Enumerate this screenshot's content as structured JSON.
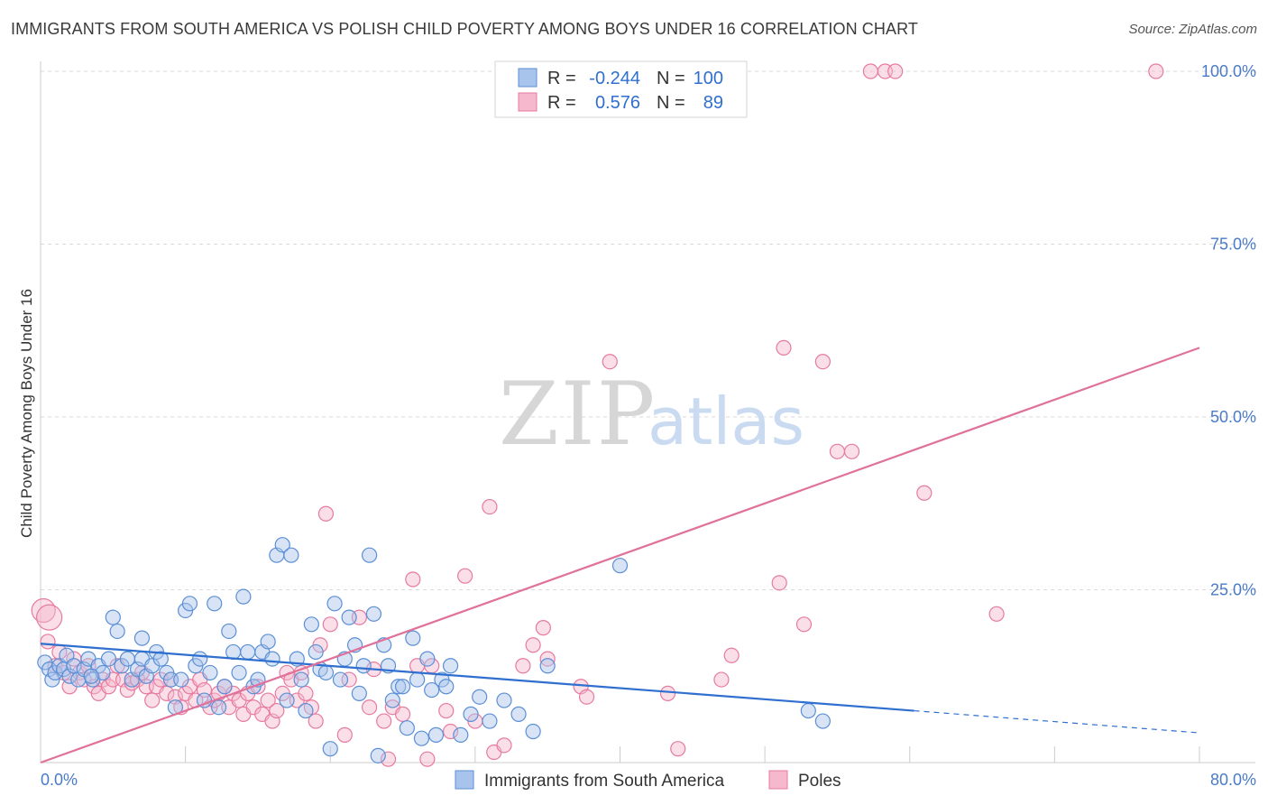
{
  "title": "IMMIGRANTS FROM SOUTH AMERICA VS POLISH CHILD POVERTY AMONG BOYS UNDER 16 CORRELATION CHART",
  "source": "Source: ZipAtlas.com",
  "watermark": {
    "zip": "ZIP",
    "atlas": "atlas"
  },
  "colors": {
    "blue": "#5b8fd6",
    "blue_fill": "#a9c4ec",
    "blue_line": "#2f6fcf",
    "pink": "#e77aa0",
    "pink_fill": "#f5b8cc",
    "pink_line": "#e0719a",
    "tick_text": "#4a7bc8",
    "grid": "#d9d9d9"
  },
  "stats_legend": [
    {
      "r_label": "R =",
      "r_value": "-0.244",
      "n_label": "N =",
      "n_value": "100"
    },
    {
      "r_label": "R =",
      "r_value": "0.576",
      "n_label": "N =",
      "n_value": "89"
    }
  ],
  "chart_data": {
    "type": "scatter",
    "xlabel": "",
    "ylabel": "Child Poverty Among Boys Under 16",
    "xlim": [
      0,
      80
    ],
    "ylim": [
      0,
      100
    ],
    "x_ticks": [
      {
        "value": 0,
        "label": "0.0%"
      },
      {
        "value": 80,
        "label": "80.0%"
      }
    ],
    "y_ticks": [
      {
        "value": 25,
        "label": "25.0%"
      },
      {
        "value": 50,
        "label": "50.0%"
      },
      {
        "value": 75,
        "label": "75.0%"
      },
      {
        "value": 100,
        "label": "100.0%"
      }
    ],
    "grid": true,
    "legend_position": "bottom-center",
    "series": [
      {
        "name": "Immigrants from South America",
        "color": "#5b8fd6",
        "trend": {
          "x0": 0,
          "y0": 17.2,
          "x1": 60.3,
          "y1": 7.5,
          "dash_to_x": 80,
          "dash_to_y": 4.3
        },
        "points": [
          [
            0.3,
            14.5
          ],
          [
            0.6,
            13.5
          ],
          [
            0.8,
            12
          ],
          [
            1.0,
            13
          ],
          [
            1.3,
            14
          ],
          [
            1.6,
            13.5
          ],
          [
            1.8,
            15.5
          ],
          [
            2.0,
            12.5
          ],
          [
            2.3,
            14
          ],
          [
            2.6,
            12
          ],
          [
            3.0,
            13.5
          ],
          [
            3.3,
            15
          ],
          [
            3.6,
            12
          ],
          [
            4.0,
            14
          ],
          [
            4.3,
            13
          ],
          [
            4.7,
            15
          ],
          [
            5.0,
            21
          ],
          [
            5.3,
            19
          ],
          [
            5.6,
            14
          ],
          [
            6.0,
            15
          ],
          [
            6.3,
            12
          ],
          [
            6.7,
            13.5
          ],
          [
            7.0,
            15
          ],
          [
            7.3,
            12.5
          ],
          [
            7.7,
            14
          ],
          [
            8.0,
            16
          ],
          [
            8.3,
            15
          ],
          [
            8.7,
            13
          ],
          [
            9.0,
            12
          ],
          [
            9.3,
            8
          ],
          [
            9.7,
            12
          ],
          [
            10.0,
            22
          ],
          [
            10.3,
            23
          ],
          [
            10.7,
            14
          ],
          [
            11.0,
            15
          ],
          [
            11.3,
            9
          ],
          [
            11.7,
            13
          ],
          [
            12.0,
            23
          ],
          [
            12.3,
            8
          ],
          [
            12.7,
            11
          ],
          [
            13.0,
            19
          ],
          [
            13.3,
            16
          ],
          [
            13.7,
            13
          ],
          [
            14.0,
            24
          ],
          [
            14.3,
            16
          ],
          [
            14.7,
            11
          ],
          [
            15.0,
            12
          ],
          [
            15.3,
            16
          ],
          [
            15.7,
            17.5
          ],
          [
            16.0,
            15
          ],
          [
            16.3,
            30
          ],
          [
            16.7,
            31.5
          ],
          [
            17.0,
            9
          ],
          [
            17.3,
            30
          ],
          [
            17.7,
            15
          ],
          [
            18.0,
            12
          ],
          [
            18.3,
            7.5
          ],
          [
            18.7,
            20
          ],
          [
            19.0,
            16
          ],
          [
            19.3,
            13.5
          ],
          [
            19.7,
            13
          ],
          [
            20.0,
            2
          ],
          [
            20.3,
            23
          ],
          [
            20.7,
            12
          ],
          [
            21.0,
            15
          ],
          [
            21.3,
            21
          ],
          [
            21.7,
            17
          ],
          [
            22.0,
            10
          ],
          [
            22.3,
            14
          ],
          [
            22.7,
            30
          ],
          [
            23.0,
            21.5
          ],
          [
            23.3,
            1
          ],
          [
            23.7,
            17
          ],
          [
            24.0,
            14
          ],
          [
            24.3,
            9
          ],
          [
            24.7,
            11
          ],
          [
            25.0,
            11
          ],
          [
            25.3,
            5
          ],
          [
            25.7,
            18
          ],
          [
            26.0,
            12
          ],
          [
            26.3,
            3.5
          ],
          [
            26.7,
            15
          ],
          [
            27.0,
            10.5
          ],
          [
            27.3,
            4
          ],
          [
            27.7,
            12
          ],
          [
            28.0,
            11
          ],
          [
            28.3,
            14
          ],
          [
            29.0,
            4
          ],
          [
            29.7,
            7
          ],
          [
            30.3,
            9.5
          ],
          [
            31.0,
            6
          ],
          [
            32.0,
            9
          ],
          [
            33.0,
            7
          ],
          [
            34.0,
            4.5
          ],
          [
            35.0,
            14
          ],
          [
            40.0,
            28.5
          ],
          [
            53.0,
            7.5
          ],
          [
            54.0,
            6
          ],
          [
            3.5,
            12.5
          ],
          [
            7.0,
            18
          ]
        ],
        "radii": {
          "default": 8,
          "big": [
            [
              0,
              14.5,
              16
            ],
            [
              0,
              13.5,
              12
            ]
          ]
        }
      },
      {
        "name": "Poles",
        "color": "#e77aa0",
        "trend": {
          "x0": 0,
          "y0": 0,
          "x1": 80,
          "y1": 60
        },
        "points": [
          [
            0.2,
            22
          ],
          [
            0.5,
            17.5
          ],
          [
            1.0,
            14
          ],
          [
            1.3,
            16
          ],
          [
            1.6,
            13
          ],
          [
            2.0,
            11
          ],
          [
            2.3,
            15
          ],
          [
            2.7,
            13
          ],
          [
            3.0,
            12
          ],
          [
            3.3,
            14
          ],
          [
            3.7,
            11
          ],
          [
            4.0,
            10
          ],
          [
            4.3,
            12
          ],
          [
            4.7,
            11
          ],
          [
            5.0,
            12
          ],
          [
            5.3,
            14
          ],
          [
            5.7,
            12
          ],
          [
            6.0,
            10.5
          ],
          [
            6.3,
            11.5
          ],
          [
            6.7,
            12
          ],
          [
            7.0,
            13
          ],
          [
            7.3,
            11
          ],
          [
            7.7,
            9
          ],
          [
            8.0,
            11
          ],
          [
            8.3,
            12
          ],
          [
            8.7,
            10
          ],
          [
            9.0,
            12
          ],
          [
            9.3,
            9.5
          ],
          [
            9.7,
            8
          ],
          [
            10.0,
            10
          ],
          [
            10.3,
            11
          ],
          [
            10.7,
            9
          ],
          [
            11.0,
            12
          ],
          [
            11.3,
            10.5
          ],
          [
            11.7,
            8
          ],
          [
            12.0,
            9
          ],
          [
            12.3,
            10
          ],
          [
            12.7,
            11
          ],
          [
            13.0,
            8
          ],
          [
            13.3,
            10
          ],
          [
            13.7,
            9
          ],
          [
            14.0,
            7
          ],
          [
            14.3,
            10
          ],
          [
            14.7,
            8
          ],
          [
            15.0,
            11
          ],
          [
            15.3,
            7
          ],
          [
            15.7,
            9
          ],
          [
            16.0,
            6
          ],
          [
            16.3,
            7.5
          ],
          [
            16.7,
            10
          ],
          [
            17.0,
            13
          ],
          [
            17.3,
            12
          ],
          [
            17.7,
            9
          ],
          [
            18.0,
            13
          ],
          [
            18.3,
            10
          ],
          [
            18.7,
            8
          ],
          [
            19.0,
            6
          ],
          [
            19.3,
            17
          ],
          [
            19.7,
            36
          ],
          [
            20.0,
            20
          ],
          [
            21.0,
            4
          ],
          [
            21.3,
            12
          ],
          [
            22.0,
            21
          ],
          [
            22.7,
            8
          ],
          [
            23.0,
            13.5
          ],
          [
            23.7,
            6
          ],
          [
            24.0,
            0.5
          ],
          [
            24.3,
            8
          ],
          [
            25.0,
            7
          ],
          [
            25.7,
            26.5
          ],
          [
            26.0,
            14
          ],
          [
            26.7,
            0.5
          ],
          [
            27.0,
            14
          ],
          [
            28.0,
            7.5
          ],
          [
            28.3,
            4.5
          ],
          [
            29.3,
            27
          ],
          [
            30.0,
            6
          ],
          [
            31.0,
            37
          ],
          [
            31.3,
            1.5
          ],
          [
            32.0,
            2.5
          ],
          [
            33.3,
            14
          ],
          [
            34.0,
            17
          ],
          [
            34.7,
            19.5
          ],
          [
            35.0,
            15
          ],
          [
            37.3,
            11
          ],
          [
            37.7,
            9.5
          ],
          [
            39.3,
            58
          ],
          [
            44.0,
            2
          ],
          [
            47.0,
            12
          ]
        ],
        "extra_points": [
          [
            43.3,
            10
          ],
          [
            47.7,
            15.5
          ],
          [
            51.0,
            26
          ],
          [
            51.3,
            60
          ],
          [
            52.7,
            20
          ],
          [
            54.0,
            58
          ],
          [
            55.0,
            45
          ],
          [
            56.0,
            45
          ],
          [
            61.0,
            39
          ],
          [
            66.0,
            21.5
          ],
          [
            57.3,
            100
          ],
          [
            58.3,
            100
          ],
          [
            59.0,
            100
          ],
          [
            77.0,
            100
          ],
          [
            0.6,
            21
          ]
        ],
        "radii": {
          "default": 8,
          "big": [
            [
              0.2,
              22,
              13
            ],
            [
              0.6,
              21,
              14
            ]
          ]
        }
      }
    ]
  },
  "bottom_legend": [
    {
      "label": "Immigrants from South America"
    },
    {
      "label": "Poles"
    }
  ]
}
